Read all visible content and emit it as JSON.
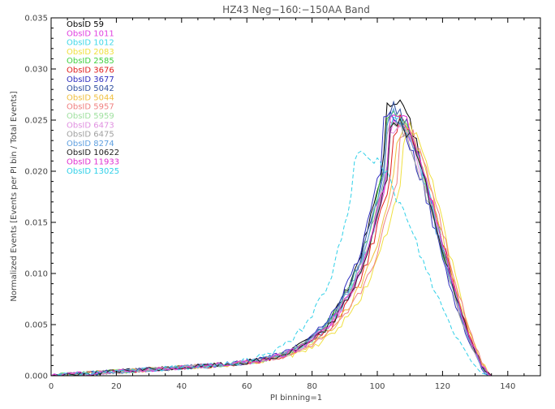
{
  "chart_data": {
    "type": "line",
    "title": "HZ43 Neg−160:−150AA Band",
    "xlabel": "PI binning=1",
    "ylabel": "Normalized Events [Events per PI bin / Total Events]",
    "xlim": [
      0,
      150
    ],
    "ylim": [
      0,
      0.035
    ],
    "xticks": [
      0,
      20,
      40,
      60,
      80,
      100,
      120,
      140
    ],
    "yticks": [
      0.0,
      0.005,
      0.01,
      0.015,
      0.02,
      0.025,
      0.03,
      0.035
    ],
    "ytick_labels": [
      "0.000",
      "0.005",
      "0.010",
      "0.015",
      "0.020",
      "0.025",
      "0.030",
      "0.035"
    ],
    "grid": false,
    "legend_position": "top-left",
    "series": [
      {
        "name": "ObsID 59",
        "color": "#000000",
        "dashed": false,
        "peak_x": 105,
        "peak_y": 0.0272,
        "scale_right": 1.0
      },
      {
        "name": "ObsID 1011",
        "color": "#e040e0",
        "dashed": false,
        "peak_x": 106,
        "peak_y": 0.025,
        "scale_right": 1.02
      },
      {
        "name": "ObsID 1012",
        "color": "#40d8e8",
        "dashed": false,
        "peak_x": 106,
        "peak_y": 0.0255,
        "scale_right": 1.02
      },
      {
        "name": "ObsID 2083",
        "color": "#f0e040",
        "dashed": false,
        "peak_x": 110,
        "peak_y": 0.0238,
        "scale_right": 1.06
      },
      {
        "name": "ObsID 2585",
        "color": "#40d040",
        "dashed": false,
        "peak_x": 105,
        "peak_y": 0.026,
        "scale_right": 1.0
      },
      {
        "name": "ObsID 3676",
        "color": "#e02020",
        "dashed": false,
        "peak_x": 107,
        "peak_y": 0.0248,
        "scale_right": 1.03
      },
      {
        "name": "ObsID 3677",
        "color": "#3030c0",
        "dashed": false,
        "peak_x": 104,
        "peak_y": 0.0258,
        "scale_right": 0.98
      },
      {
        "name": "ObsID 5042",
        "color": "#3050a0",
        "dashed": false,
        "peak_x": 105,
        "peak_y": 0.0262,
        "scale_right": 1.0
      },
      {
        "name": "ObsID 5044",
        "color": "#f0c040",
        "dashed": false,
        "peak_x": 108,
        "peak_y": 0.0242,
        "scale_right": 1.05
      },
      {
        "name": "ObsID 5957",
        "color": "#f08080",
        "dashed": false,
        "peak_x": 109,
        "peak_y": 0.024,
        "scale_right": 1.07
      },
      {
        "name": "ObsID 5959",
        "color": "#a0e0a0",
        "dashed": false,
        "peak_x": 106,
        "peak_y": 0.0252,
        "scale_right": 1.02
      },
      {
        "name": "ObsID 6473",
        "color": "#e090e0",
        "dashed": false,
        "peak_x": 106,
        "peak_y": 0.0245,
        "scale_right": 1.03
      },
      {
        "name": "ObsID 6475",
        "color": "#a0a0a0",
        "dashed": false,
        "peak_x": 105,
        "peak_y": 0.025,
        "scale_right": 1.01
      },
      {
        "name": "ObsID 8274",
        "color": "#60a0e0",
        "dashed": false,
        "peak_x": 105,
        "peak_y": 0.0254,
        "scale_right": 1.0
      },
      {
        "name": "ObsID 10622",
        "color": "#202020",
        "dashed": false,
        "peak_x": 106,
        "peak_y": 0.0248,
        "scale_right": 1.02
      },
      {
        "name": "ObsID 11933",
        "color": "#e030d0",
        "dashed": false,
        "peak_x": 106,
        "peak_y": 0.0258,
        "scale_right": 1.01
      },
      {
        "name": "ObsID 13025",
        "color": "#30d0e8",
        "dashed": true,
        "peak_x": 95,
        "peak_y": 0.0222,
        "scale_right": 0.92
      }
    ]
  }
}
